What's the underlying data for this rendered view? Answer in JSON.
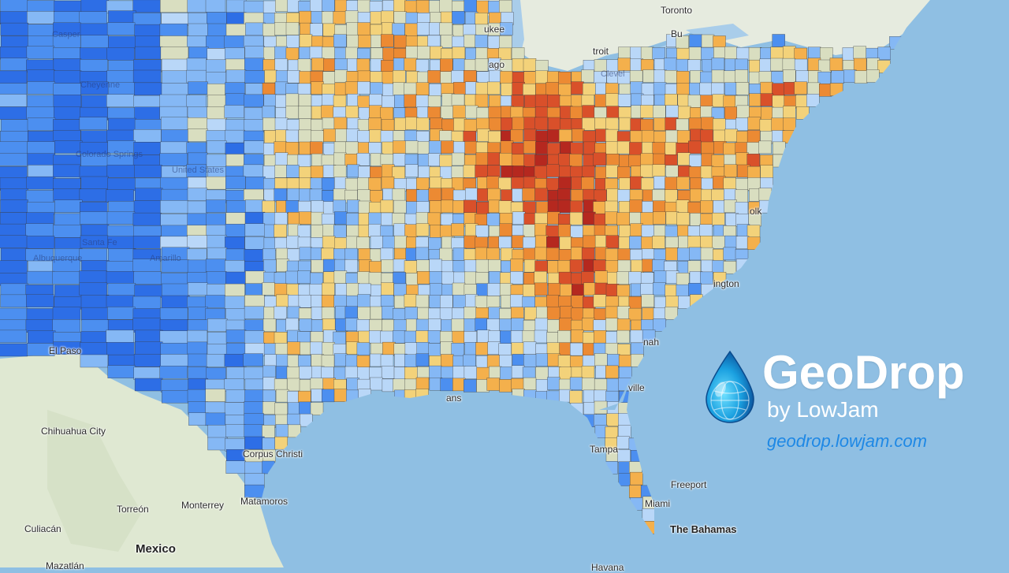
{
  "map": {
    "water_color": "#8fbfe3",
    "land_color": "#dfe8d2",
    "choropleth_colors": [
      "#2d6ee6",
      "#4c8ff0",
      "#85b8f5",
      "#b9d7f8",
      "#d9dec0",
      "#f3d27a",
      "#f4b04c",
      "#ec8a33",
      "#d9502a",
      "#b5281f"
    ],
    "labels": [
      {
        "name": "toronto",
        "text": "Toronto",
        "style": "normal"
      },
      {
        "name": "buffalo-partial",
        "text": "Bu",
        "style": "normal"
      },
      {
        "name": "milwaukee-partial",
        "text": "ukee",
        "style": "normal"
      },
      {
        "name": "chicago-partial",
        "text": "ago",
        "style": "normal"
      },
      {
        "name": "detroit-partial",
        "text": "troit",
        "style": "normal"
      },
      {
        "name": "cleveland-partial",
        "text": "Clevel",
        "style": "faint"
      },
      {
        "name": "casper",
        "text": "Casper",
        "style": "faint"
      },
      {
        "name": "cheyenne",
        "text": "Cheyenne",
        "style": "faint"
      },
      {
        "name": "colorado-springs",
        "text": "Colorado Springs",
        "style": "faint"
      },
      {
        "name": "united-states",
        "text": "United States",
        "style": "faint"
      },
      {
        "name": "santa-fe",
        "text": "Santa Fe",
        "style": "faint"
      },
      {
        "name": "albuquerque",
        "text": "Albuquerque",
        "style": "faint"
      },
      {
        "name": "amarillo",
        "text": "Amarillo",
        "style": "faint"
      },
      {
        "name": "el-paso",
        "text": "El Paso",
        "style": "normal"
      },
      {
        "name": "norfolk-partial",
        "text": "olk",
        "style": "normal"
      },
      {
        "name": "wilmington-partial",
        "text": "ington",
        "style": "normal"
      },
      {
        "name": "savannah-partial",
        "text": "nah",
        "style": "normal"
      },
      {
        "name": "jacksonville-partial",
        "text": "ville",
        "style": "normal"
      },
      {
        "name": "tampa",
        "text": "Tampa",
        "style": "normal"
      },
      {
        "name": "miami",
        "text": "Miami",
        "style": "normal"
      },
      {
        "name": "freeport",
        "text": "Freeport",
        "style": "normal"
      },
      {
        "name": "the-bahamas",
        "text": "The Bahamas",
        "style": "island"
      },
      {
        "name": "new-orleans-partial",
        "text": "ans",
        "style": "normal"
      },
      {
        "name": "corpus-christi",
        "text": "Corpus Christi",
        "style": "normal"
      },
      {
        "name": "matamoros",
        "text": "Matamoros",
        "style": "normal"
      },
      {
        "name": "chihuahua-city",
        "text": "Chihuahua City",
        "style": "normal"
      },
      {
        "name": "torreon",
        "text": "Torreón",
        "style": "normal"
      },
      {
        "name": "monterrey",
        "text": "Monterrey",
        "style": "normal"
      },
      {
        "name": "culiacan",
        "text": "Culiacán",
        "style": "normal"
      },
      {
        "name": "mexico",
        "text": "Mexico",
        "style": "country"
      },
      {
        "name": "mazatlan",
        "text": "Mazatlán",
        "style": "normal"
      },
      {
        "name": "havana-partial",
        "text": "Havana",
        "style": "normal"
      }
    ]
  },
  "brand": {
    "name": "GeoDrop",
    "byline": "by LowJam",
    "url": "geodrop.lowjam.com",
    "logo_icon": "water-drop-globe-icon",
    "name_color": "#ffffff",
    "url_color": "#1e88e5"
  }
}
